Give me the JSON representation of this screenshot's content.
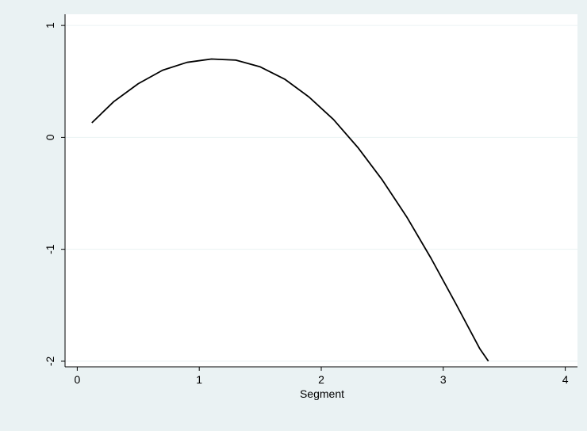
{
  "chart_data": {
    "type": "line",
    "title": "",
    "xlabel": "Segment",
    "ylabel": "",
    "xlim": [
      -0.1,
      4.1
    ],
    "ylim": [
      -2.05,
      1.1
    ],
    "x_ticks": [
      0,
      1,
      2,
      3,
      4
    ],
    "y_ticks": [
      -2,
      -1,
      0,
      1
    ],
    "grid": "horizontal",
    "legend": "none",
    "colors": {
      "outer_background": "#eaf2f3",
      "plot_background": "#ffffff",
      "gridline": "#eaf2f3",
      "line": "#000000"
    },
    "series": [
      {
        "x": [
          0.12,
          0.3,
          0.5,
          0.7,
          0.9,
          1.1,
          1.3,
          1.5,
          1.7,
          1.9,
          2.1,
          2.3,
          2.5,
          2.7,
          2.9,
          3.1,
          3.3,
          3.37
        ],
        "y": [
          0.13,
          0.32,
          0.48,
          0.6,
          0.67,
          0.7,
          0.69,
          0.63,
          0.52,
          0.36,
          0.16,
          -0.09,
          -0.38,
          -0.71,
          -1.08,
          -1.48,
          -1.89,
          -2.0
        ]
      }
    ]
  }
}
